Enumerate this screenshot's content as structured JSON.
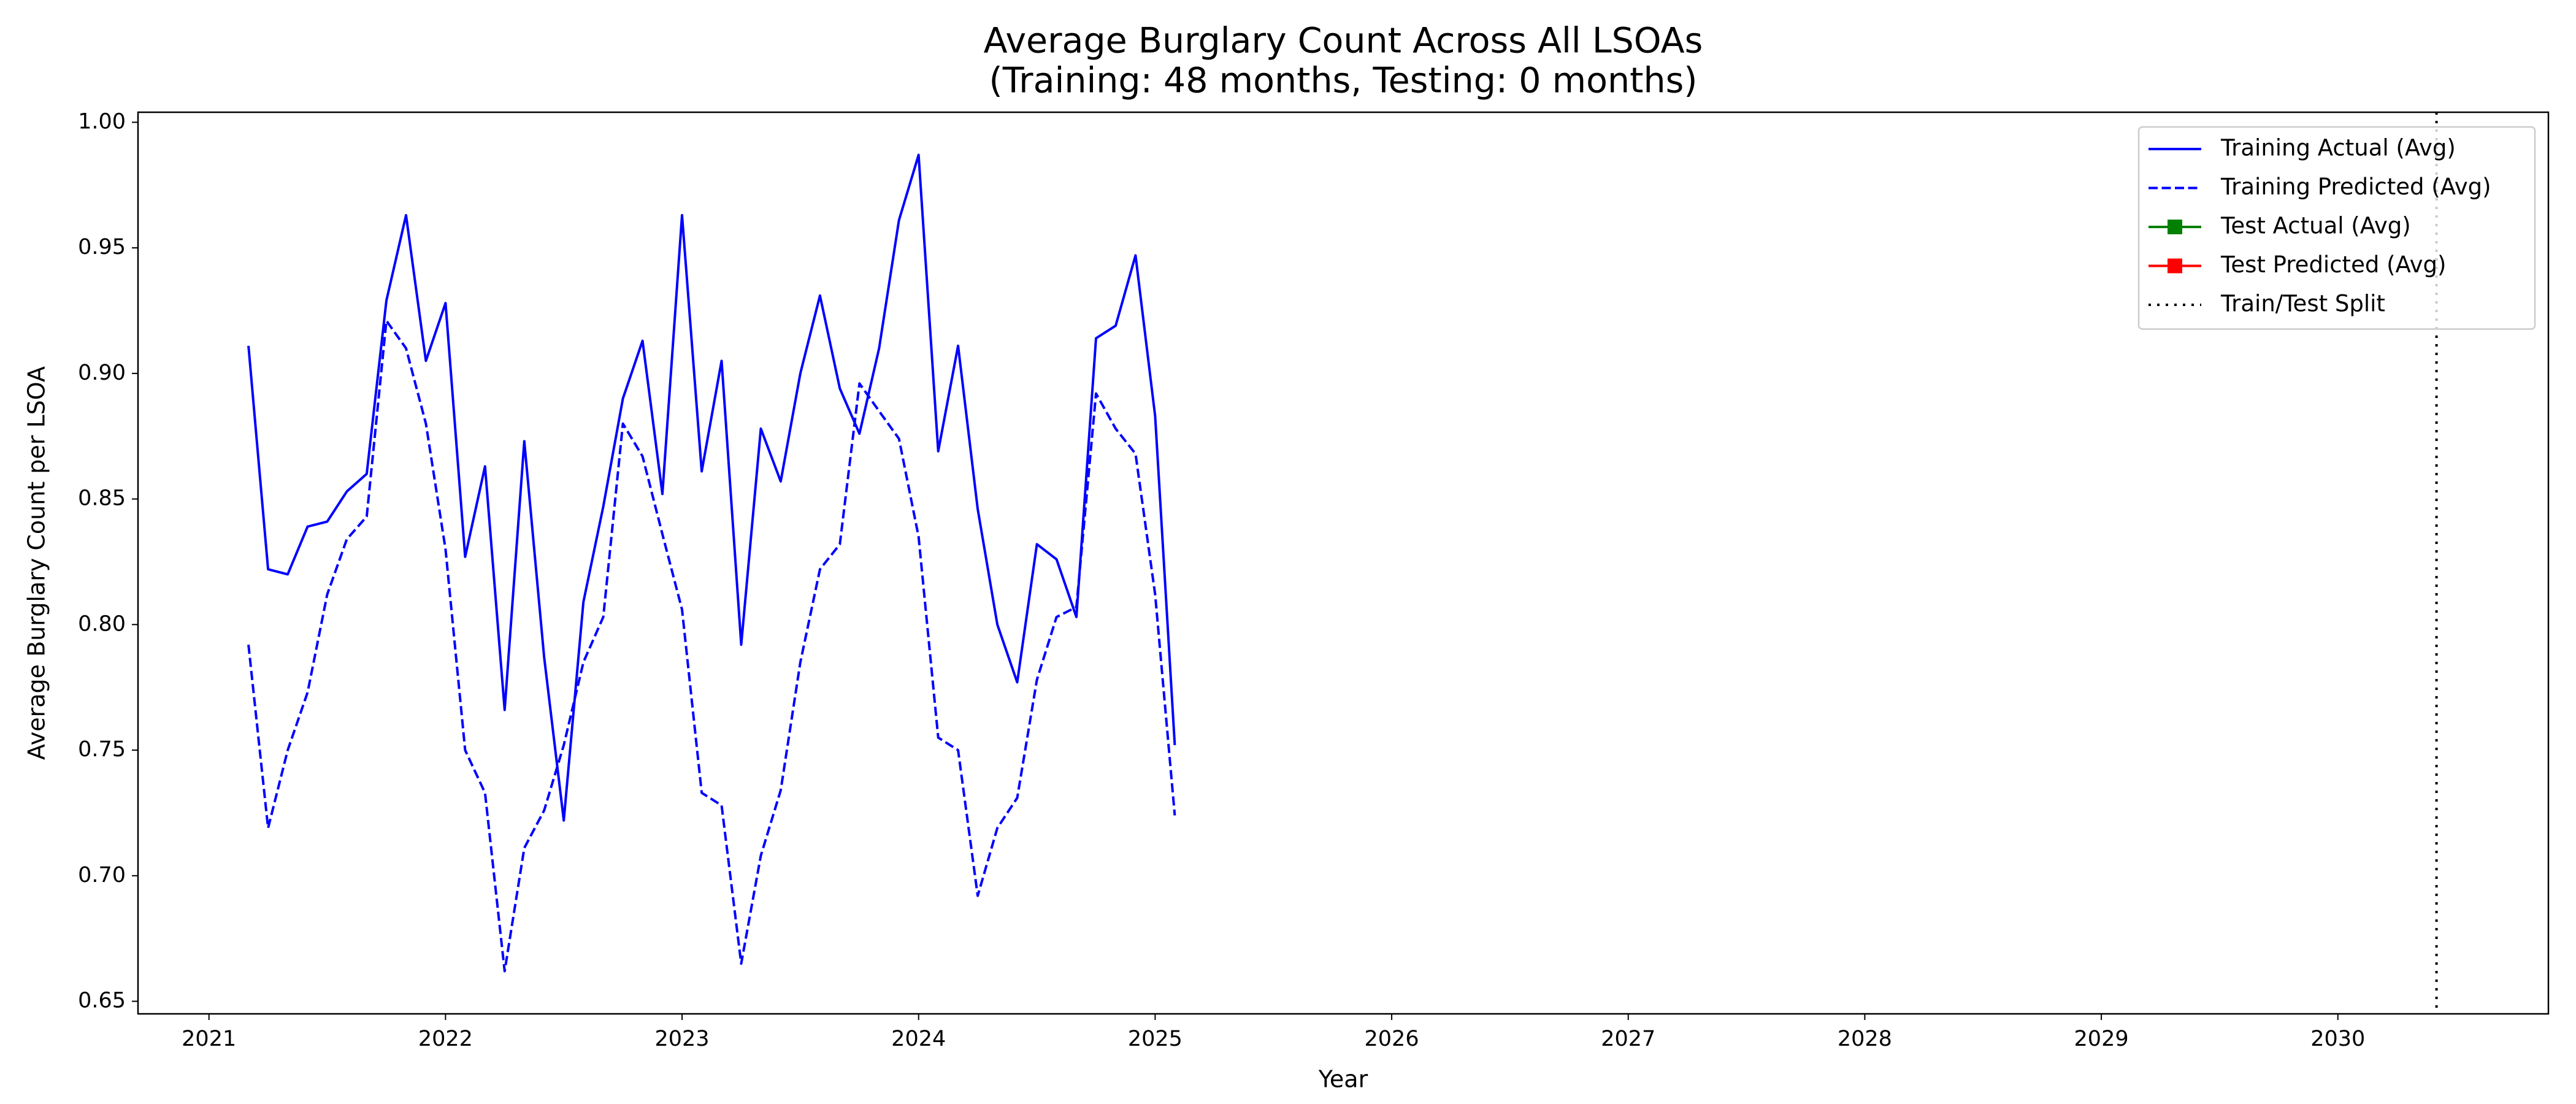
{
  "chart_data": {
    "type": "line",
    "title": "Average Burglary Count Across All LSOAs",
    "subtitle": "(Training: 48 months, Testing: 0 months)",
    "xlabel": "Year",
    "ylabel": "Average Burglary Count per LSOA",
    "xlim": [
      2020.7,
      2030.89
    ],
    "xticks": [
      2021,
      2022,
      2023,
      2024,
      2025,
      2026,
      2027,
      2028,
      2029,
      2030
    ],
    "ylim": [
      0.645,
      1.004
    ],
    "yticks": [
      0.65,
      {
        "value": 0.7,
        "label": "0.70"
      },
      0.75,
      {
        "value": 0.8,
        "label": "0.80"
      },
      0.85,
      {
        "value": 0.9,
        "label": "0.90"
      },
      0.95,
      {
        "value": 1,
        "label": "1.00"
      }
    ],
    "grid": false,
    "legend": "upper right",
    "series": [
      {
        "name": "Training Actual (Avg)",
        "color": "#0000ff",
        "linestyle": "solid",
        "x": [
          2021.167,
          2021.25,
          2021.333,
          2021.417,
          2021.5,
          2021.583,
          2021.667,
          2021.75,
          2021.833,
          2021.917,
          2022,
          2022.083,
          2022.167,
          2022.25,
          2022.333,
          2022.417,
          2022.5,
          2022.583,
          2022.667,
          2022.75,
          2022.833,
          2022.917,
          2023,
          2023.083,
          2023.167,
          2023.25,
          2023.333,
          2023.417,
          2023.5,
          2023.583,
          2023.667,
          2023.75,
          2023.833,
          2023.917,
          2024,
          2024.083,
          2024.167,
          2024.25,
          2024.333,
          2024.417,
          2024.5,
          2024.583,
          2024.667,
          2024.75,
          2024.833,
          2024.917,
          2025,
          2025.083
        ],
        "values": [
          0.911,
          0.822,
          0.82,
          0.839,
          0.841,
          0.853,
          0.86,
          0.929,
          0.963,
          0.905,
          0.928,
          0.827,
          0.863,
          0.766,
          0.873,
          0.787,
          0.722,
          0.809,
          0.847,
          0.89,
          0.913,
          0.852,
          0.963,
          0.861,
          0.905,
          0.792,
          0.878,
          0.857,
          0.9,
          0.931,
          0.894,
          0.876,
          0.91,
          0.961,
          0.987,
          0.869,
          0.911,
          0.846,
          0.8,
          0.777,
          0.832,
          0.826,
          0.803,
          0.914,
          0.919,
          0.947,
          0.883,
          0.752
        ]
      },
      {
        "name": "Training Predicted (Avg)",
        "color": "#0000ff",
        "linestyle": "dashed",
        "x": [
          2021.167,
          2021.25,
          2021.333,
          2021.417,
          2021.5,
          2021.583,
          2021.667,
          2021.75,
          2021.833,
          2021.917,
          2022,
          2022.083,
          2022.167,
          2022.25,
          2022.333,
          2022.417,
          2022.5,
          2022.583,
          2022.667,
          2022.75,
          2022.833,
          2022.917,
          2023,
          2023.083,
          2023.167,
          2023.25,
          2023.333,
          2023.417,
          2023.5,
          2023.583,
          2023.667,
          2023.75,
          2023.833,
          2023.917,
          2024,
          2024.083,
          2024.167,
          2024.25,
          2024.333,
          2024.417,
          2024.5,
          2024.583,
          2024.667,
          2024.75,
          2024.833,
          2024.917,
          2025,
          2025.083
        ],
        "values": [
          0.792,
          0.719,
          0.75,
          0.773,
          0.812,
          0.834,
          0.843,
          0.921,
          0.91,
          0.88,
          0.83,
          0.75,
          0.733,
          0.662,
          0.711,
          0.726,
          0.752,
          0.785,
          0.803,
          0.88,
          0.867,
          0.836,
          0.806,
          0.733,
          0.728,
          0.665,
          0.708,
          0.734,
          0.785,
          0.822,
          0.832,
          0.896,
          0.885,
          0.874,
          0.835,
          0.755,
          0.75,
          0.692,
          0.719,
          0.731,
          0.778,
          0.803,
          0.807,
          0.892,
          0.878,
          0.868,
          0.812,
          0.724
        ]
      },
      {
        "name": "Test Actual (Avg)",
        "color": "#008000",
        "linestyle": "solid",
        "marker": "square",
        "x": [],
        "values": []
      },
      {
        "name": "Test Predicted (Avg)",
        "color": "#ff0000",
        "linestyle": "solid",
        "marker": "square",
        "x": [],
        "values": []
      }
    ],
    "split": {
      "name": "Train/Test Split",
      "x": 2030.417,
      "color": "#000000",
      "linestyle": "dotted"
    }
  }
}
